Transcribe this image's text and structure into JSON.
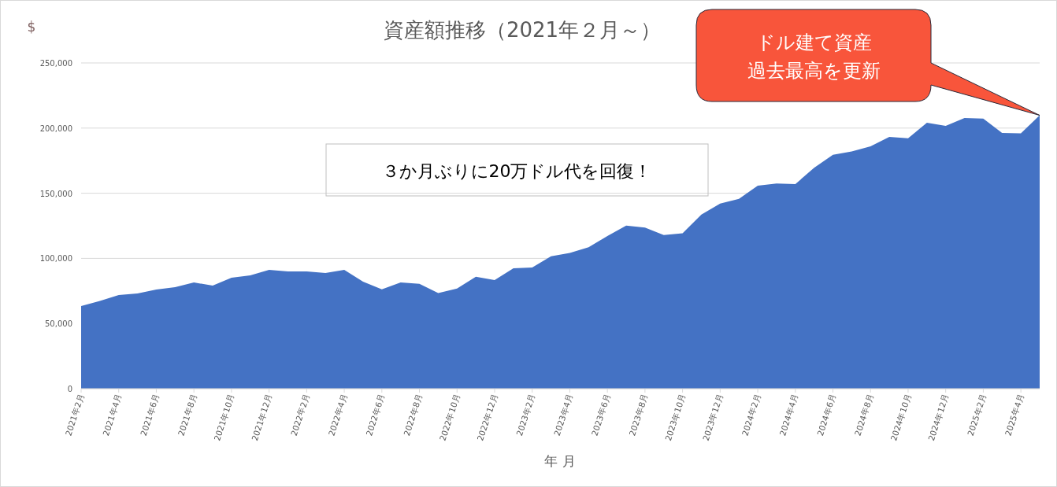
{
  "chart_data": {
    "type": "area",
    "title": "資産額推移（2021年２月～）",
    "ylabel": "$",
    "xlabel": "年 月",
    "categories": [
      "2021年2月",
      null,
      "2021年4月",
      null,
      "2021年6月",
      null,
      "2021年8月",
      null,
      "2021年10月",
      null,
      "2021年12月",
      null,
      "2022年2月",
      null,
      "2022年4月",
      null,
      "2022年6月",
      null,
      "2022年8月",
      null,
      "2022年10月",
      null,
      "2022年12月",
      null,
      "2023年2月",
      null,
      "2023年4月",
      null,
      "2023年6月",
      null,
      "2023年8月",
      null,
      "2023年10月",
      null,
      "2023年12月",
      null,
      "2024年2月",
      null,
      "2024年4月",
      null,
      "2024年6月",
      null,
      "2024年8月",
      null,
      "2024年10月",
      null,
      "2024年12月",
      null,
      "2025年2月",
      null,
      "2025年4月",
      null
    ],
    "series": [
      {
        "color": "#4472c4",
        "values": [
          63400,
          67400,
          71900,
          73100,
          76100,
          77900,
          81500,
          79100,
          85100,
          87000,
          91200,
          90000,
          90000,
          88800,
          91200,
          82100,
          76300,
          81500,
          80500,
          73300,
          76900,
          85900,
          83300,
          92400,
          93000,
          101600,
          104100,
          108500,
          117100,
          125200,
          123600,
          117900,
          119200,
          133600,
          142000,
          145700,
          155800,
          157400,
          157000,
          169500,
          179500,
          182000,
          186000,
          193200,
          192200,
          204100,
          201700,
          207700,
          207300,
          196300,
          195900,
          209800
        ]
      }
    ],
    "ylim": [
      0,
      250000
    ],
    "yticks": [
      0,
      {
        "value": 50000,
        "label": "50,000"
      },
      {
        "value": 100000,
        "label": "100,000"
      },
      {
        "value": 150000,
        "label": "150,000"
      },
      {
        "value": 200000,
        "label": "200,000"
      },
      {
        "value": 250000,
        "label": "250,000"
      }
    ],
    "grid": "y",
    "annotations": [
      "３か月ぶりに20万ドル代を回復！",
      "ドル建て資産",
      "過去最高を更新"
    ]
  }
}
